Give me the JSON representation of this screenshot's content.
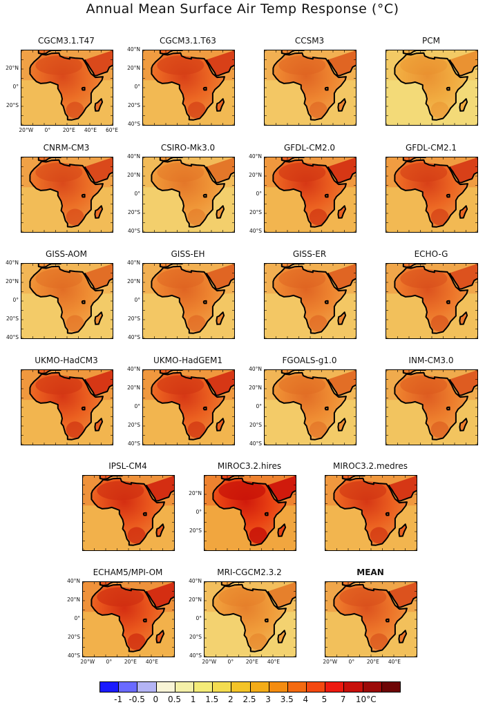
{
  "title": "Annual Mean Surface Air Temp Response (°C)",
  "models": [
    {
      "name": "CGCM3.1.T47",
      "intensity": 0.65
    },
    {
      "name": "CGCM3.1.T63",
      "intensity": 0.7
    },
    {
      "name": "CCSM3",
      "intensity": 0.5
    },
    {
      "name": "PCM",
      "intensity": 0.25
    },
    {
      "name": "CNRM-CM3",
      "intensity": 0.65
    },
    {
      "name": "CSIRO-Mk3.0",
      "intensity": 0.4
    },
    {
      "name": "GFDL-CM2.0",
      "intensity": 0.75
    },
    {
      "name": "GFDL-CM2.1",
      "intensity": 0.7
    },
    {
      "name": "GISS-AOM",
      "intensity": 0.45
    },
    {
      "name": "GISS-EH",
      "intensity": 0.5
    },
    {
      "name": "GISS-ER",
      "intensity": 0.5
    },
    {
      "name": "ECHO-G",
      "intensity": 0.6
    },
    {
      "name": "UKMO-HadCM3",
      "intensity": 0.75
    },
    {
      "name": "UKMO-HadGEM1",
      "intensity": 0.75
    },
    {
      "name": "FGOALS-g1.0",
      "intensity": 0.45
    },
    {
      "name": "INM-CM3.0",
      "intensity": 0.55
    },
    {
      "name": "IPSL-CM4",
      "intensity": 0.8
    },
    {
      "name": "MIROC3.2.hires",
      "intensity": 0.95
    },
    {
      "name": "MIROC3.2.medres",
      "intensity": 0.75
    },
    {
      "name": "ECHAM5/MPI-OM",
      "intensity": 0.8
    },
    {
      "name": "MRI-CGCM2.3.2",
      "intensity": 0.35
    },
    {
      "name": "MEAN",
      "intensity": 0.6,
      "bold": true
    }
  ],
  "lat_labels": [
    "40°N",
    "20°N",
    "0°",
    "20°S",
    "40°S"
  ],
  "lon_labels": [
    "20°W",
    "0°",
    "20°E",
    "40°E",
    "60°E"
  ],
  "colorbar": {
    "colors": [
      "#1a1aff",
      "#6a6aff",
      "#b4b4f4",
      "#f8f4d6",
      "#f4f0a8",
      "#f4ec78",
      "#f4dc50",
      "#f4c428",
      "#f4ac18",
      "#f48c10",
      "#f46a10",
      "#f44810",
      "#ee1a10",
      "#c8100a",
      "#9c0a08",
      "#6e0606"
    ],
    "labels": [
      "-1",
      "-0.5",
      "0",
      "0.5",
      "1",
      "1.5",
      "2",
      "2.5",
      "3",
      "3.5",
      "4",
      "5",
      "7",
      "10°C"
    ]
  }
}
